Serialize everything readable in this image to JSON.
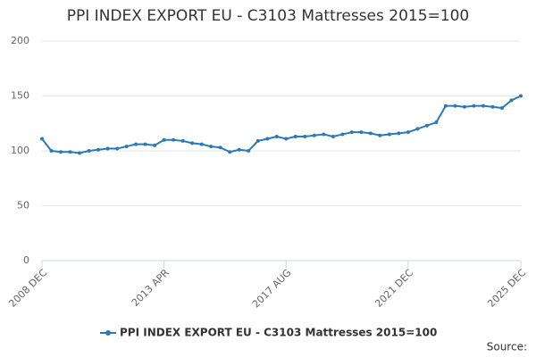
{
  "chart_data": {
    "type": "line",
    "title": "PPI INDEX EXPORT EU - C3103 Mattresses 2015=100",
    "source": "Source:",
    "legend": "bottom",
    "grid": true,
    "categories": [
      "2008 DEC",
      null,
      null,
      null,
      null,
      null,
      null,
      null,
      null,
      null,
      null,
      null,
      null,
      "2013 APR",
      null,
      null,
      null,
      null,
      null,
      null,
      null,
      null,
      null,
      null,
      null,
      null,
      "2017 AUG",
      null,
      null,
      null,
      null,
      null,
      null,
      null,
      null,
      null,
      null,
      null,
      null,
      "2021 DEC",
      null,
      null,
      null,
      null,
      null,
      null,
      null,
      null,
      null,
      null,
      null,
      "2025 DEC"
    ],
    "series": [
      {
        "name": "PPI INDEX EXPORT EU - C3103 Mattresses 2015=100",
        "color": "#2a7ab8",
        "values": [
          111,
          100,
          99,
          99,
          98,
          100,
          101,
          102,
          102,
          104,
          106,
          106,
          105,
          110,
          110,
          109,
          107,
          106,
          104,
          103,
          99,
          101,
          100,
          109,
          111,
          113,
          111,
          113,
          113,
          114,
          115,
          113,
          115,
          117,
          117,
          116,
          114,
          115,
          116,
          117,
          120,
          123,
          126,
          141,
          141,
          140,
          141,
          141,
          140,
          139,
          146,
          150
        ]
      }
    ],
    "ylim": [
      0,
      200
    ],
    "yticks": [
      0,
      50,
      100,
      150,
      200
    ]
  }
}
